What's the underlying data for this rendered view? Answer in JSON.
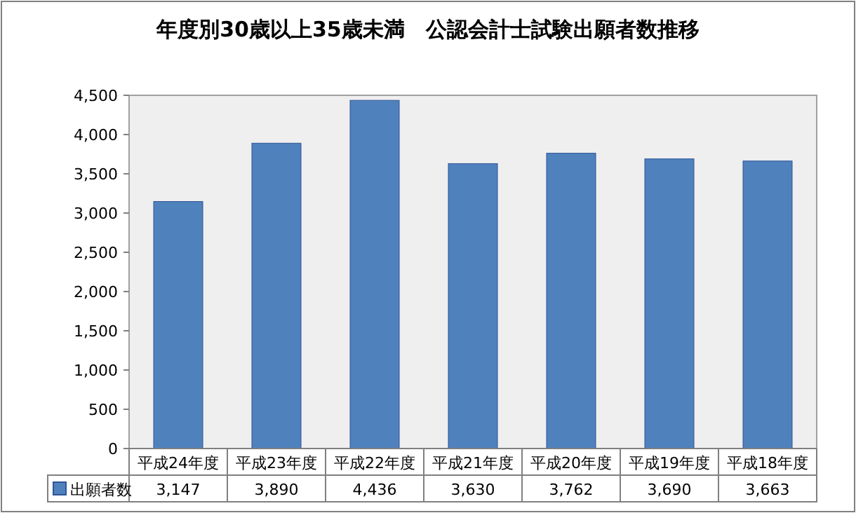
{
  "chart_data": {
    "type": "bar",
    "title": "年度別30歳以上35歳未満　公認会計士試験出願者数推移",
    "categories": [
      "平成24年度",
      "平成23年度",
      "平成22年度",
      "平成21年度",
      "平成20年度",
      "平成19年度",
      "平成18年度"
    ],
    "series": [
      {
        "name": "出願者数",
        "color": "#4f81bd",
        "values": [
          3147,
          3890,
          4436,
          3630,
          3762,
          3690,
          3663
        ],
        "value_labels": [
          "3,147",
          "3,890",
          "4,436",
          "3,630",
          "3,762",
          "3,690",
          "3,663"
        ]
      }
    ],
    "ylim": [
      0,
      4500
    ],
    "yticks": [
      {
        "value": 0,
        "label": "0"
      },
      {
        "value": 500,
        "label": "500"
      },
      {
        "value": 1000,
        "label": "1,000"
      },
      {
        "value": 1500,
        "label": "1,500"
      },
      {
        "value": 2000,
        "label": "2,000"
      },
      {
        "value": 2500,
        "label": "2,500"
      },
      {
        "value": 3000,
        "label": "3,000"
      },
      {
        "value": 3500,
        "label": "3,500"
      },
      {
        "value": 4000,
        "label": "4,000"
      },
      {
        "value": 4500,
        "label": "4,500"
      }
    ],
    "legend": "bottom"
  }
}
